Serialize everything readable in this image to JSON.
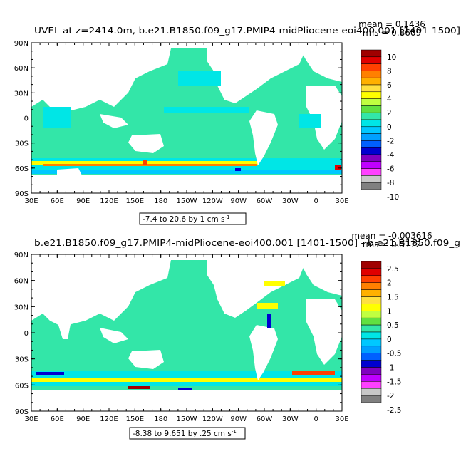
{
  "colors": {
    "ocean_zero": "#33e6a8",
    "ocean_pos_light": "#00e6e6",
    "ocean_neg": "#00c8ff",
    "land": "#ffffff",
    "frame": "#000000"
  },
  "lon_labels": [
    "30E",
    "60E",
    "90E",
    "120E",
    "150E",
    "180",
    "150W",
    "120W",
    "90W",
    "60W",
    "30W",
    "0",
    "30E"
  ],
  "lat_labels": [
    "90N",
    "60N",
    "30N",
    "0",
    "30S",
    "60S",
    "90S"
  ],
  "panels": [
    {
      "title": "UVEL at z=2414.0m, b.e21.B1850.f09_g17.PMIP4-midPliocene-eoi400.001 [1401-1500]",
      "stat_mean": "mean = 0.1436",
      "stat_rms": "rms = 0.8609",
      "range_text": "-7.4 to 20.6 by 1 cm s",
      "range_sup": "-1",
      "legend_labels": [
        "10",
        "8",
        "6",
        "4",
        "2",
        "0",
        "-2",
        "-4",
        "-6",
        "-8",
        "-10"
      ],
      "legend_colors": [
        "#a00000",
        "#e00000",
        "#ff4000",
        "#ff8000",
        "#ffb000",
        "#ffe040",
        "#ffff00",
        "#c0ff40",
        "#60e040",
        "#33e6a8",
        "#00e6e6",
        "#00c8ff",
        "#00a0ff",
        "#0060ff",
        "#0000d0",
        "#8000c0",
        "#c000ff",
        "#ff40ff",
        "#c8c8c8",
        "#808080"
      ]
    },
    {
      "title": "b.e21.B1850.f09_g17.PMIP4-midPliocene-eoi400.001 [1401-1500] - b.e21.B1850.f09_g",
      "stat_mean": "mean = -0.003616",
      "stat_rms": "rms = 0.5172",
      "range_text": "-8.38 to 9.651 by .25 cm s",
      "range_sup": "-1",
      "legend_labels": [
        "2.5",
        "2",
        "1.5",
        "1",
        "0.5",
        "0",
        "-0.5",
        "-1",
        "-1.5",
        "-2",
        "-2.5"
      ],
      "legend_colors": [
        "#a00000",
        "#e00000",
        "#ff4000",
        "#ff8000",
        "#ffb000",
        "#ffe040",
        "#ffff00",
        "#c0ff40",
        "#60e040",
        "#33e6a8",
        "#00e6e6",
        "#00c8ff",
        "#00a0ff",
        "#0060ff",
        "#0000d0",
        "#8000c0",
        "#c000ff",
        "#ff40ff",
        "#c8c8c8",
        "#808080"
      ]
    }
  ]
}
